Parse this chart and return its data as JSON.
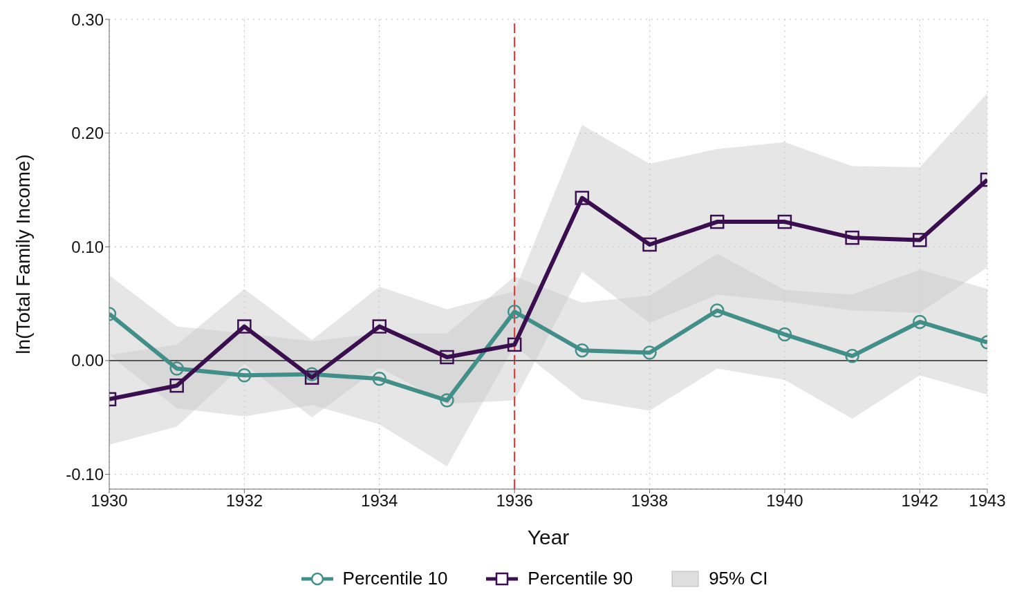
{
  "chart_data": {
    "type": "line",
    "xlabel": "Year",
    "ylabel": "ln(Total Family Income)",
    "x": [
      1930,
      1931,
      1932,
      1933,
      1934,
      1935,
      1936,
      1937,
      1938,
      1939,
      1940,
      1941,
      1942,
      1943
    ],
    "series": [
      {
        "name": "Percentile 10",
        "color": "#428f89",
        "marker": "circle",
        "values": [
          0.041,
          -0.007,
          -0.013,
          -0.012,
          -0.016,
          -0.035,
          0.043,
          0.009,
          0.007,
          0.044,
          0.023,
          0.004,
          0.034,
          0.016
        ],
        "lower": [
          0.005,
          -0.042,
          -0.049,
          -0.039,
          -0.056,
          -0.093,
          0.013,
          -0.034,
          -0.044,
          -0.007,
          -0.017,
          -0.051,
          -0.013,
          -0.03
        ],
        "upper": [
          0.075,
          0.03,
          0.024,
          0.017,
          0.024,
          0.024,
          0.074,
          0.051,
          0.057,
          0.094,
          0.062,
          0.058,
          0.08,
          0.063
        ]
      },
      {
        "name": "Percentile 90",
        "color": "#3b0f4f",
        "marker": "square",
        "values": [
          -0.034,
          -0.022,
          0.03,
          -0.015,
          0.03,
          0.003,
          0.014,
          0.143,
          0.102,
          0.122,
          0.122,
          0.108,
          0.106,
          0.159
        ],
        "lower": [
          -0.074,
          -0.058,
          -0.003,
          -0.05,
          -0.006,
          -0.038,
          -0.035,
          0.078,
          0.033,
          0.058,
          0.052,
          0.044,
          0.042,
          0.082
        ],
        "upper": [
          0.005,
          0.014,
          0.063,
          0.018,
          0.065,
          0.045,
          0.061,
          0.207,
          0.173,
          0.186,
          0.192,
          0.171,
          0.17,
          0.235
        ]
      }
    ],
    "xlim": [
      1930,
      1943
    ],
    "xticks": [
      1930,
      1932,
      1934,
      1936,
      1938,
      1940,
      1942,
      1943
    ],
    "ylim": [
      -0.113,
      0.3
    ],
    "yticks": [
      {
        "value": -0.1,
        "label": "-0.10"
      },
      {
        "value": 0,
        "label": "0.00"
      },
      {
        "value": 0.1,
        "label": "0.10"
      },
      {
        "value": 0.2,
        "label": "0.20"
      },
      {
        "value": 0.3,
        "label": "0.30"
      }
    ],
    "ref_lines": [
      {
        "axis": "x",
        "value": 1936,
        "color": "#e8312a",
        "line_style": "dashed"
      },
      {
        "axis": "y",
        "value": 0,
        "color": "#555555",
        "line_style": "solid"
      }
    ],
    "grid": true,
    "legend": "bottom",
    "annotations": [
      "95% CI"
    ]
  }
}
